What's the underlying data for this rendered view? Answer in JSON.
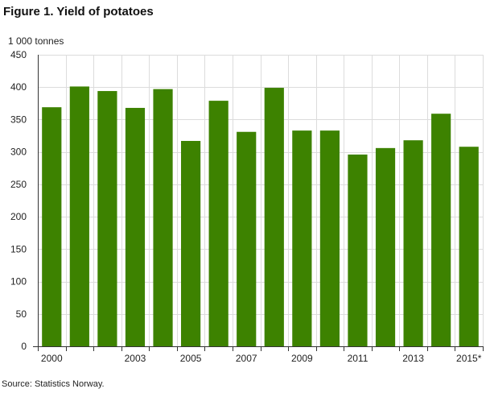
{
  "title": "Figure 1. Yield of potatoes",
  "source": "Source: Statistics Norway.",
  "colors": {
    "bar": "#3d8200",
    "grid": "#dcdcdc",
    "axis": "#333333",
    "text": "#222222"
  },
  "chart_data": {
    "type": "bar",
    "title": "Figure 1. Yield of potatoes",
    "ylabel": "1 000 tonnes",
    "xlabel": "",
    "ylim": [
      0,
      450
    ],
    "yticks": [
      0,
      50,
      100,
      150,
      200,
      250,
      300,
      350,
      400,
      450
    ],
    "grid": true,
    "categories": [
      "2000",
      "2001",
      "2002",
      "2003",
      "2004",
      "2005",
      "2006",
      "2007",
      "2008",
      "2009",
      "2010",
      "2011",
      "2012",
      "2013",
      "2014",
      "2015*"
    ],
    "x_tick_labels": [
      "2000",
      "",
      "",
      "2003",
      "",
      "2005",
      "",
      "2007",
      "",
      "2009",
      "",
      "2011",
      "",
      "2013",
      "",
      "2015*"
    ],
    "values": [
      369,
      401,
      394,
      368,
      397,
      317,
      379,
      331,
      399,
      333,
      333,
      296,
      306,
      318,
      359,
      308
    ]
  }
}
